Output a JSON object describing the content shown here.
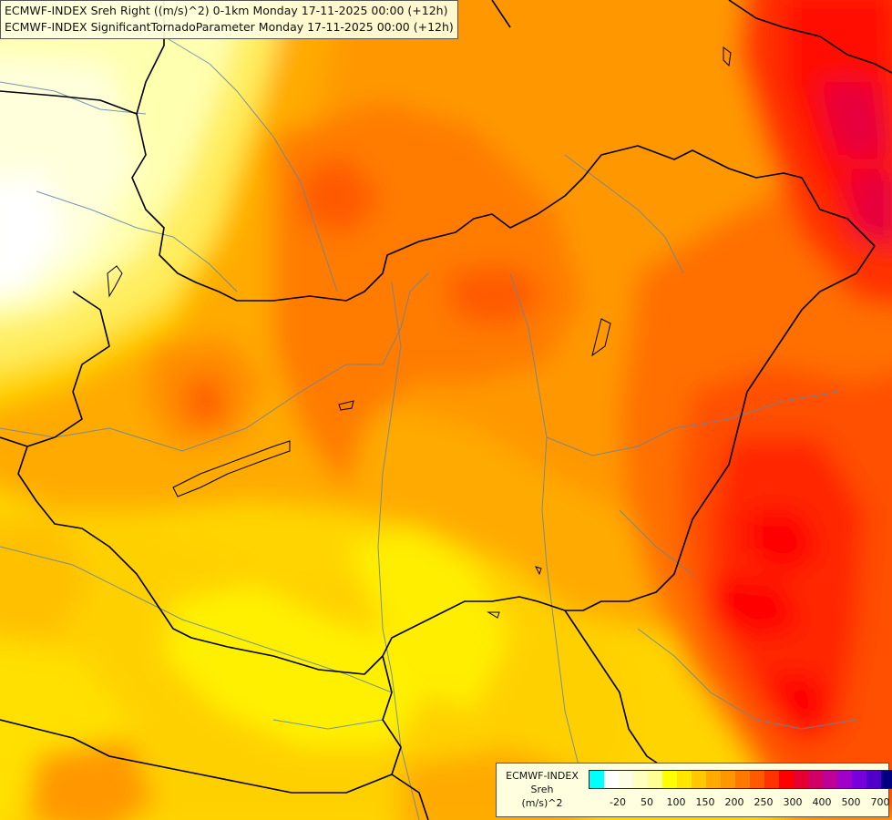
{
  "header": {
    "line1": "ECMWF-INDEX Sreh Right ((m/s)^2) 0-1km Monday 17-11-2025 00:00 (+12h)",
    "line2": "ECMWF-INDEX SignificantTornadoParameter Monday 17-11-2025 00:00 (+12h)"
  },
  "legend": {
    "title1": "ECMWF-INDEX",
    "title2": "Sreh",
    "title3": "(m/s)^2",
    "colors": [
      "#00ffff",
      "#ffffff",
      "#ffffe6",
      "#ffffbe",
      "#ffff96",
      "#ffff00",
      "#ffe600",
      "#ffc800",
      "#ffaa00",
      "#ff9600",
      "#ff7800",
      "#ff5a00",
      "#ff3200",
      "#ff0000",
      "#e60032",
      "#d20064",
      "#be0096",
      "#a000c8",
      "#7800dc",
      "#5000c8",
      "#000080"
    ],
    "ticks": [
      {
        "label": "-20",
        "index": 1
      },
      {
        "label": "50",
        "index": 3
      },
      {
        "label": "100",
        "index": 5
      },
      {
        "label": "150",
        "index": 7
      },
      {
        "label": "200",
        "index": 9
      },
      {
        "label": "250",
        "index": 11
      },
      {
        "label": "300",
        "index": 13
      },
      {
        "label": "400",
        "index": 15
      },
      {
        "label": "500",
        "index": 17
      },
      {
        "label": "700",
        "index": 19
      }
    ]
  },
  "map": {
    "base_color": "#ffd400"
  }
}
